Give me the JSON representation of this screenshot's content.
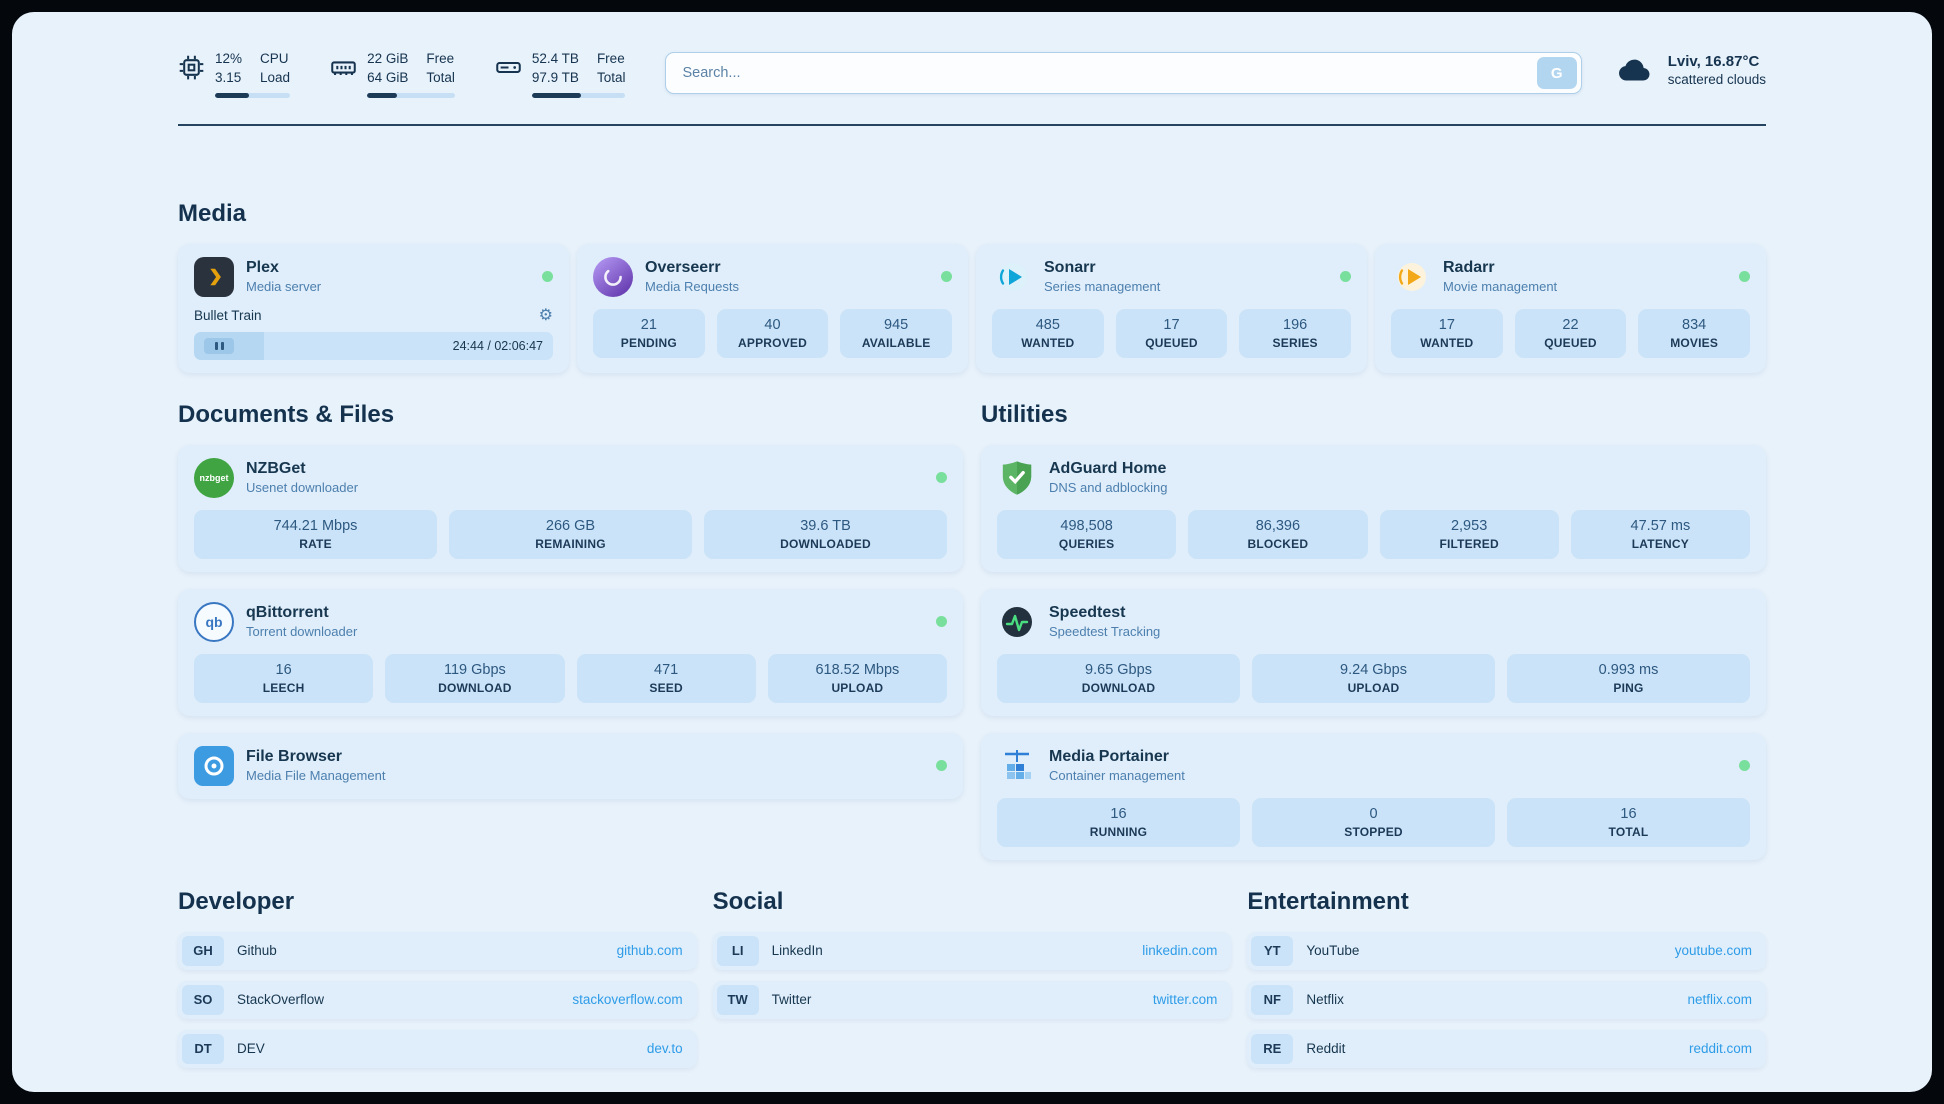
{
  "theme": {
    "background": "#e8f2fb",
    "card": "#dfeefa",
    "stat_box": "#cae3f8",
    "text_primary": "#17364f",
    "text_secondary": "#4d7fae",
    "link": "#2f9ce8",
    "status_green": "#79df9c",
    "progress_fill": "#1d3a57"
  },
  "icons": {
    "gear": "⚙"
  },
  "topbar": {
    "cpu": {
      "value_top": "12%",
      "value_bottom": "3.15",
      "label_top": "CPU",
      "label_bottom": "Load",
      "progress_percent": 45
    },
    "memory": {
      "value_top": "22 GiB",
      "value_bottom": "64 GiB",
      "label_top": "Free",
      "label_bottom": "Total",
      "progress_percent": 34
    },
    "disk": {
      "value_top": "52.4 TB",
      "value_bottom": "97.9 TB",
      "label_top": "Free",
      "label_bottom": "Total",
      "progress_percent": 53
    },
    "search": {
      "placeholder": "Search...",
      "button_label": "G"
    },
    "weather": {
      "location": "Lviv, 16.87°C",
      "condition": "scattered clouds"
    }
  },
  "sections": {
    "media": {
      "title": "Media",
      "plex": {
        "name": "Plex",
        "subtitle": "Media server",
        "now_playing": "Bullet Train",
        "elapsed_total": "24:44 / 02:06:47",
        "progress_percent": 19.5
      },
      "overseerr": {
        "name": "Overseerr",
        "subtitle": "Media Requests",
        "stats": [
          {
            "value": "21",
            "label": "PENDING"
          },
          {
            "value": "40",
            "label": "APPROVED"
          },
          {
            "value": "945",
            "label": "AVAILABLE"
          }
        ]
      },
      "sonarr": {
        "name": "Sonarr",
        "subtitle": "Series management",
        "stats": [
          {
            "value": "485",
            "label": "WANTED"
          },
          {
            "value": "17",
            "label": "QUEUED"
          },
          {
            "value": "196",
            "label": "SERIES"
          }
        ]
      },
      "radarr": {
        "name": "Radarr",
        "subtitle": "Movie management",
        "stats": [
          {
            "value": "17",
            "label": "WANTED"
          },
          {
            "value": "22",
            "label": "QUEUED"
          },
          {
            "value": "834",
            "label": "MOVIES"
          }
        ]
      }
    },
    "documents": {
      "title": "Documents & Files",
      "nzbget": {
        "name": "NZBGet",
        "subtitle": "Usenet downloader",
        "icon_text": "nzbget",
        "stats": [
          {
            "value": "744.21 Mbps",
            "label": "RATE"
          },
          {
            "value": "266 GB",
            "label": "REMAINING"
          },
          {
            "value": "39.6 TB",
            "label": "DOWNLOADED"
          }
        ]
      },
      "qbittorrent": {
        "name": "qBittorrent",
        "subtitle": "Torrent downloader",
        "icon_text": "qb",
        "stats": [
          {
            "value": "16",
            "label": "LEECH"
          },
          {
            "value": "119 Gbps",
            "label": "DOWNLOAD"
          },
          {
            "value": "471",
            "label": "SEED"
          },
          {
            "value": "618.52 Mbps",
            "label": "UPLOAD"
          }
        ]
      },
      "filebrowser": {
        "name": "File Browser",
        "subtitle": "Media File Management"
      }
    },
    "utilities": {
      "title": "Utilities",
      "adguard": {
        "name": "AdGuard Home",
        "subtitle": "DNS and adblocking",
        "stats": [
          {
            "value": "498,508",
            "label": "QUERIES"
          },
          {
            "value": "86,396",
            "label": "BLOCKED"
          },
          {
            "value": "2,953",
            "label": "FILTERED"
          },
          {
            "value": "47.57 ms",
            "label": "LATENCY"
          }
        ]
      },
      "speedtest": {
        "name": "Speedtest",
        "subtitle": "Speedtest Tracking",
        "stats": [
          {
            "value": "9.65 Gbps",
            "label": "DOWNLOAD"
          },
          {
            "value": "9.24 Gbps",
            "label": "UPLOAD"
          },
          {
            "value": "0.993 ms",
            "label": "PING"
          }
        ]
      },
      "portainer": {
        "name": "Media Portainer",
        "subtitle": "Container management",
        "stats": [
          {
            "value": "16",
            "label": "RUNNING"
          },
          {
            "value": "0",
            "label": "STOPPED"
          },
          {
            "value": "16",
            "label": "TOTAL"
          }
        ]
      }
    },
    "developer": {
      "title": "Developer",
      "links": [
        {
          "abbr": "GH",
          "name": "Github",
          "url": "github.com"
        },
        {
          "abbr": "SO",
          "name": "StackOverflow",
          "url": "stackoverflow.com"
        },
        {
          "abbr": "DT",
          "name": "DEV",
          "url": "dev.to"
        }
      ]
    },
    "social": {
      "title": "Social",
      "links": [
        {
          "abbr": "LI",
          "name": "LinkedIn",
          "url": "linkedin.com"
        },
        {
          "abbr": "TW",
          "name": "Twitter",
          "url": "twitter.com"
        }
      ]
    },
    "entertainment": {
      "title": "Entertainment",
      "links": [
        {
          "abbr": "YT",
          "name": "YouTube",
          "url": "youtube.com"
        },
        {
          "abbr": "NF",
          "name": "Netflix",
          "url": "netflix.com"
        },
        {
          "abbr": "RE",
          "name": "Reddit",
          "url": "reddit.com"
        }
      ]
    }
  }
}
